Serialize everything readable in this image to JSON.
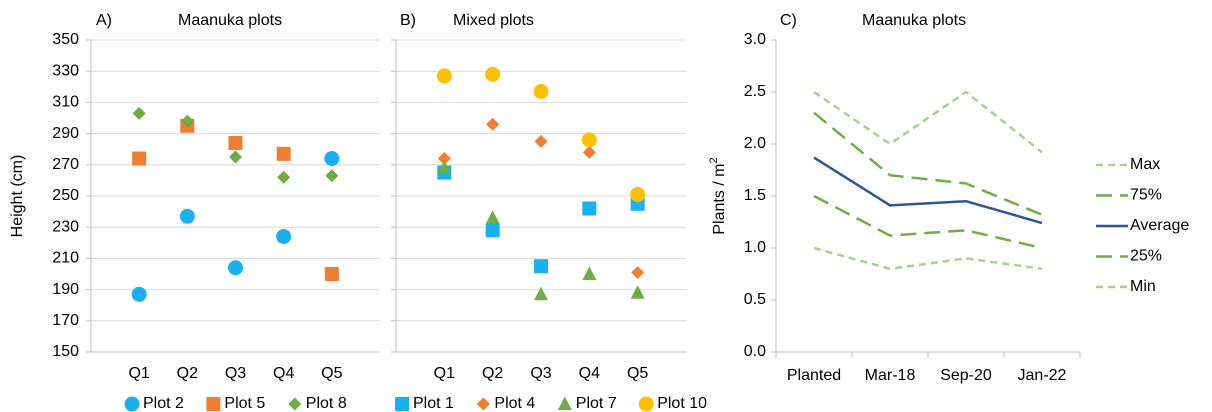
{
  "chart_data": [
    {
      "panel": "A)",
      "type": "scatter",
      "title": "Maanuka plots",
      "ylabel": "Height (cm)",
      "xlabel": "",
      "ylim": [
        150,
        350
      ],
      "yticks": [
        "150",
        "170",
        "190",
        "210",
        "230",
        "250",
        "270",
        "290",
        "310",
        "330",
        "350"
      ],
      "grid": true,
      "legend_position": "bottom",
      "categories": [
        "Q1",
        "Q2",
        "Q3",
        "Q4",
        "Q5"
      ],
      "series": [
        {
          "name": "Plot 2",
          "marker": "circle",
          "color": "#1BB0EE",
          "values": [
            187,
            237,
            204,
            224,
            274
          ]
        },
        {
          "name": "Plot 5",
          "marker": "square",
          "color": "#F07E32",
          "values": [
            274,
            295,
            284,
            277,
            200
          ]
        },
        {
          "name": "Plot 8",
          "marker": "diamond",
          "color": "#6FAC45",
          "values": [
            303,
            298,
            275,
            262,
            263
          ]
        }
      ]
    },
    {
      "panel": "B)",
      "type": "scatter",
      "title": "Mixed plots",
      "ylabel": "",
      "xlabel": "",
      "ylim": [
        150,
        350
      ],
      "grid": true,
      "legend_position": "bottom",
      "categories": [
        "Q1",
        "Q2",
        "Q3",
        "Q4",
        "Q5"
      ],
      "series": [
        {
          "name": "Plot 1",
          "marker": "square",
          "color": "#1BB0EE",
          "values": [
            265,
            228,
            205,
            242,
            245
          ]
        },
        {
          "name": "Plot 4",
          "marker": "diamond",
          "color": "#F07E32",
          "values": [
            274,
            296,
            285,
            278,
            201
          ]
        },
        {
          "name": "Plot 7",
          "marker": "triangle",
          "color": "#6FAC45",
          "values": [
            268,
            236,
            187,
            200,
            188
          ]
        },
        {
          "name": "Plot 10",
          "marker": "circle",
          "color": "#FFC000",
          "values": [
            327,
            328,
            317,
            286,
            251
          ]
        }
      ]
    },
    {
      "panel": "C)",
      "type": "line",
      "title": "Maanuka plots",
      "ylabel": "Plants / m",
      "ylabel_superscript": "2",
      "xlabel": "",
      "ylim": [
        0,
        3
      ],
      "yticks": [
        "0.0",
        "0.5",
        "1.0",
        "1.5",
        "2.0",
        "2.5",
        "3.0"
      ],
      "grid": false,
      "legend_position": "right",
      "categories": [
        "Planted",
        "Mar-18",
        "Sep-20",
        "Jan-22"
      ],
      "series": [
        {
          "name": "Max",
          "style": "short-dash",
          "color": "#A9D18E",
          "values": [
            2.5,
            2.0,
            2.5,
            1.92
          ]
        },
        {
          "name": "75%",
          "style": "long-dash",
          "color": "#70AD47",
          "values": [
            2.3,
            1.7,
            1.62,
            1.32
          ]
        },
        {
          "name": "Average",
          "style": "solid",
          "color": "#2F5597",
          "values": [
            1.87,
            1.41,
            1.45,
            1.24
          ]
        },
        {
          "name": "25%",
          "style": "long-dash",
          "color": "#70AD47",
          "values": [
            1.5,
            1.12,
            1.17,
            1.0
          ]
        },
        {
          "name": "Min",
          "style": "short-dash",
          "color": "#A9D18E",
          "values": [
            1.0,
            0.8,
            0.9,
            0.8
          ]
        }
      ]
    }
  ]
}
